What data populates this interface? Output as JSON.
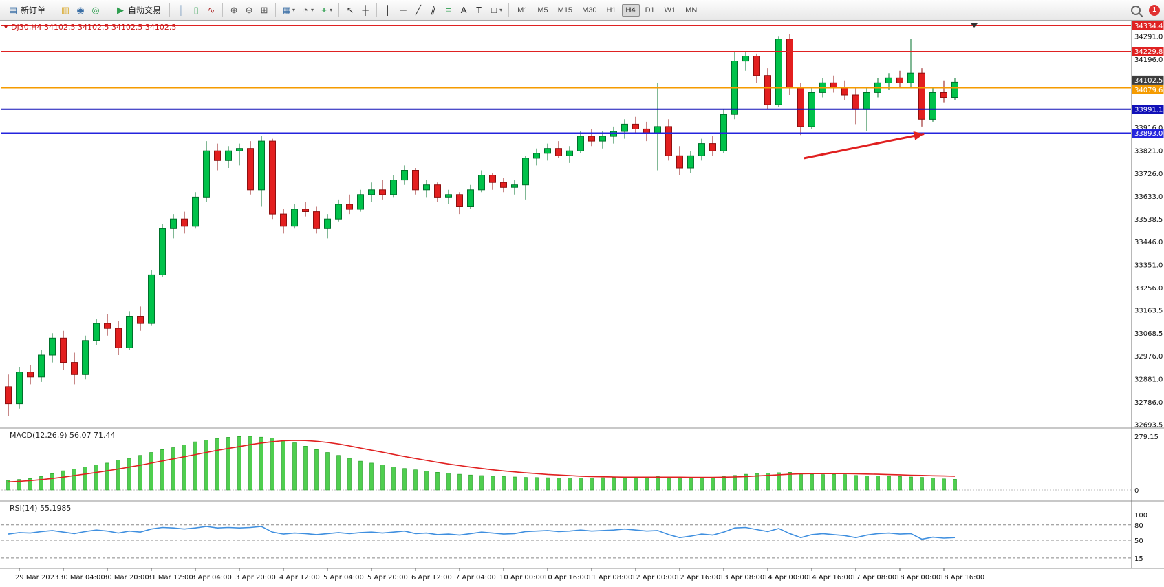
{
  "toolbar": {
    "new_order": "新订单",
    "autotrade": "自动交易",
    "timeframes": [
      "M1",
      "M5",
      "M15",
      "M30",
      "H1",
      "H4",
      "D1",
      "W1",
      "MN"
    ],
    "active_timeframe": "H4",
    "badge": "1",
    "icons": {
      "new_order": "▤",
      "charts": "▥",
      "profiles": "◉",
      "community": "◎",
      "autotrade_play": "▶",
      "bars": "║",
      "candles": "▯",
      "line_chart": "∿",
      "zoom_in": "⊕",
      "zoom_out": "⊖",
      "tile_windows": "⊞",
      "new_chart": "▦",
      "periods": "◔",
      "indicators": "+",
      "cursor": "↖",
      "crosshair": "┼",
      "vline": "│",
      "hline": "─",
      "trendline": "╱",
      "channel": "∥",
      "fibonacci": "≡",
      "text_tool": "A",
      "label_tool": "T",
      "shapes": "□",
      "caret": "▾"
    }
  },
  "chart_data": {
    "type": "candlestick",
    "symbol": "DJ30",
    "timeframe": "H4",
    "title": "DJ30,H4  34102.5 34102.5 34102.5 34102.5",
    "y_range": [
      32680,
      34350
    ],
    "candles": [
      [
        32850,
        32900,
        32730,
        32780
      ],
      [
        32780,
        32930,
        32760,
        32910
      ],
      [
        32910,
        32940,
        32860,
        32890
      ],
      [
        32890,
        33000,
        32870,
        32980
      ],
      [
        32980,
        33070,
        32950,
        33050
      ],
      [
        33050,
        33080,
        32920,
        32950
      ],
      [
        32950,
        32990,
        32860,
        32900
      ],
      [
        32900,
        33060,
        32880,
        33040
      ],
      [
        33040,
        33130,
        33020,
        33110
      ],
      [
        33110,
        33150,
        33060,
        33090
      ],
      [
        33090,
        33120,
        32980,
        33010
      ],
      [
        33010,
        33160,
        33000,
        33140
      ],
      [
        33140,
        33180,
        33080,
        33110
      ],
      [
        33110,
        33330,
        33100,
        33310
      ],
      [
        33310,
        33520,
        33300,
        33500
      ],
      [
        33500,
        33560,
        33460,
        33540
      ],
      [
        33540,
        33570,
        33480,
        33510
      ],
      [
        33510,
        33650,
        33500,
        33630
      ],
      [
        33630,
        33860,
        33610,
        33820
      ],
      [
        33820,
        33850,
        33740,
        33780
      ],
      [
        33780,
        33840,
        33750,
        33820
      ],
      [
        33820,
        33850,
        33760,
        33830
      ],
      [
        33830,
        33860,
        33640,
        33660
      ],
      [
        33660,
        33880,
        33590,
        33860
      ],
      [
        33860,
        33870,
        33540,
        33560
      ],
      [
        33560,
        33580,
        33480,
        33510
      ],
      [
        33510,
        33600,
        33500,
        33580
      ],
      [
        33580,
        33610,
        33550,
        33570
      ],
      [
        33570,
        33590,
        33480,
        33500
      ],
      [
        33500,
        33560,
        33460,
        33540
      ],
      [
        33540,
        33620,
        33530,
        33600
      ],
      [
        33600,
        33640,
        33560,
        33580
      ],
      [
        33580,
        33660,
        33570,
        33640
      ],
      [
        33640,
        33690,
        33610,
        33660
      ],
      [
        33660,
        33700,
        33620,
        33640
      ],
      [
        33640,
        33720,
        33630,
        33700
      ],
      [
        33700,
        33760,
        33680,
        33740
      ],
      [
        33740,
        33750,
        33640,
        33660
      ],
      [
        33660,
        33700,
        33630,
        33680
      ],
      [
        33680,
        33690,
        33610,
        33630
      ],
      [
        33630,
        33660,
        33600,
        33640
      ],
      [
        33640,
        33650,
        33560,
        33590
      ],
      [
        33590,
        33680,
        33580,
        33660
      ],
      [
        33660,
        33740,
        33650,
        33720
      ],
      [
        33720,
        33730,
        33660,
        33690
      ],
      [
        33690,
        33710,
        33650,
        33670
      ],
      [
        33670,
        33700,
        33640,
        33680
      ],
      [
        33680,
        33800,
        33620,
        33790
      ],
      [
        33790,
        33830,
        33760,
        33810
      ],
      [
        33810,
        33850,
        33780,
        33830
      ],
      [
        33830,
        33860,
        33790,
        33800
      ],
      [
        33800,
        33840,
        33770,
        33820
      ],
      [
        33820,
        33900,
        33810,
        33880
      ],
      [
        33880,
        33910,
        33840,
        33860
      ],
      [
        33860,
        33900,
        33830,
        33880
      ],
      [
        33880,
        33920,
        33850,
        33900
      ],
      [
        33900,
        33950,
        33870,
        33930
      ],
      [
        33930,
        33960,
        33890,
        33910
      ],
      [
        33910,
        33940,
        33860,
        33890
      ],
      [
        33890,
        34100,
        33740,
        33920
      ],
      [
        33920,
        33950,
        33780,
        33800
      ],
      [
        33800,
        33840,
        33720,
        33750
      ],
      [
        33750,
        33820,
        33730,
        33800
      ],
      [
        33800,
        33870,
        33780,
        33850
      ],
      [
        33850,
        33880,
        33800,
        33820
      ],
      [
        33820,
        33990,
        33810,
        33970
      ],
      [
        33970,
        34230,
        33950,
        34190
      ],
      [
        34190,
        34230,
        34150,
        34210
      ],
      [
        34210,
        34220,
        34100,
        34130
      ],
      [
        34130,
        34160,
        33990,
        34010
      ],
      [
        34010,
        34290,
        34000,
        34280
      ],
      [
        34280,
        34300,
        34050,
        34080
      ],
      [
        34080,
        34100,
        33885,
        33920
      ],
      [
        33920,
        34080,
        33910,
        34060
      ],
      [
        34060,
        34120,
        34040,
        34100
      ],
      [
        34100,
        34130,
        34060,
        34080
      ],
      [
        34080,
        34110,
        34030,
        34050
      ],
      [
        34050,
        34080,
        33930,
        33990
      ],
      [
        33990,
        34080,
        33900,
        34060
      ],
      [
        34060,
        34120,
        34040,
        34100
      ],
      [
        34100,
        34140,
        34070,
        34120
      ],
      [
        34120,
        34150,
        34080,
        34100
      ],
      [
        34100,
        34280,
        34080,
        34140
      ],
      [
        34140,
        34160,
        33920,
        33950
      ],
      [
        33950,
        34080,
        33940,
        34060
      ],
      [
        34060,
        34110,
        34020,
        34040
      ],
      [
        34040,
        34120,
        34030,
        34102.5
      ]
    ],
    "time_labels": [
      {
        "bar": 1,
        "text": "29 Mar 2023"
      },
      {
        "bar": 5,
        "text": "30 Mar 04:00"
      },
      {
        "bar": 9,
        "text": "30 Mar 20:00"
      },
      {
        "bar": 13,
        "text": "31 Mar 12:00"
      },
      {
        "bar": 17,
        "text": "3 Apr 04:00"
      },
      {
        "bar": 21,
        "text": "3 Apr 20:00"
      },
      {
        "bar": 25,
        "text": "4 Apr 12:00"
      },
      {
        "bar": 29,
        "text": "5 Apr 04:00"
      },
      {
        "bar": 33,
        "text": "5 Apr 20:00"
      },
      {
        "bar": 37,
        "text": "6 Apr 12:00"
      },
      {
        "bar": 41,
        "text": "7 Apr 04:00"
      },
      {
        "bar": 45,
        "text": "10 Apr 00:00"
      },
      {
        "bar": 49,
        "text": "10 Apr 16:00"
      },
      {
        "bar": 53,
        "text": "11 Apr 08:00"
      },
      {
        "bar": 57,
        "text": "12 Apr 00:00"
      },
      {
        "bar": 61,
        "text": "12 Apr 16:00"
      },
      {
        "bar": 65,
        "text": "13 Apr 08:00"
      },
      {
        "bar": 69,
        "text": "14 Apr 00:00"
      },
      {
        "bar": 73,
        "text": "14 Apr 16:00"
      },
      {
        "bar": 77,
        "text": "17 Apr 08:00"
      },
      {
        "bar": 81,
        "text": "18 Apr 00:00"
      },
      {
        "bar": 85,
        "text": "18 Apr 16:00"
      }
    ],
    "y_axis_labels": [
      34291.0,
      34196.0,
      33916.0,
      33821.0,
      33726.0,
      33633.0,
      33538.5,
      33446.0,
      33351.0,
      33256.0,
      33163.5,
      33068.5,
      32976.0,
      32881.0,
      32786.0,
      32693.5
    ],
    "price_lines": [
      {
        "label": "34334.4",
        "price": 34334.4,
        "color": "#df2222",
        "width": 1,
        "nudge": 0
      },
      {
        "label": "34229.8",
        "price": 34229.8,
        "color": "#df2222",
        "width": 1,
        "nudge": 0
      },
      {
        "label": "34079.6",
        "price": 34079.6,
        "color": "#f59b00",
        "width": 2,
        "nudge": 3
      },
      {
        "label": "33991.1",
        "price": 33991.1,
        "color": "#1111b8",
        "width": 2,
        "nudge": 0
      },
      {
        "label": "33893.0",
        "price": 33893.0,
        "color": "#2424dd",
        "width": 2,
        "nudge": 0
      }
    ],
    "current_price": {
      "label": "34102.5",
      "value": 34102.5,
      "box_color": "#3d3d3d",
      "nudge": -3
    },
    "annotations": [
      {
        "type": "arrow",
        "color": "#e02020",
        "from": {
          "bar": 72.3,
          "price": 33790
        },
        "to": {
          "bar": 83.2,
          "price": 33890
        }
      }
    ],
    "macd": {
      "name": "MACD(12,26,9)",
      "value_main": "56.07",
      "value_signal": "71.44",
      "scale_max": 279.15,
      "axis_labels": [
        "279.15",
        "0"
      ],
      "hist": [
        50,
        55,
        60,
        70,
        85,
        100,
        110,
        120,
        130,
        140,
        155,
        165,
        180,
        195,
        210,
        220,
        235,
        250,
        260,
        268,
        274,
        278,
        279,
        275,
        270,
        260,
        245,
        228,
        210,
        195,
        180,
        165,
        150,
        140,
        130,
        120,
        112,
        105,
        98,
        92,
        87,
        82,
        78,
        75,
        72,
        70,
        68,
        66,
        65,
        64,
        63,
        62,
        62,
        63,
        64,
        65,
        66,
        67,
        68,
        70,
        68,
        64,
        62,
        63,
        66,
        70,
        76,
        82,
        86,
        88,
        90,
        92,
        88,
        82,
        80,
        82,
        80,
        76,
        74,
        73,
        72,
        70,
        68,
        66,
        62,
        58,
        56
      ],
      "signal": [
        42,
        45,
        49,
        54,
        60,
        67,
        75,
        83,
        91,
        100,
        109,
        119,
        129,
        140,
        151,
        162,
        173,
        184,
        195,
        206,
        216,
        226,
        236,
        244,
        251,
        256,
        258,
        257,
        253,
        247,
        239,
        229,
        218,
        207,
        196,
        185,
        174,
        164,
        154,
        144,
        135,
        127,
        119,
        112,
        105,
        99,
        94,
        89,
        85,
        81,
        78,
        75,
        72,
        70,
        69,
        68,
        67,
        67,
        67,
        67,
        67,
        67,
        66,
        66,
        66,
        67,
        68,
        70,
        73,
        76,
        79,
        82,
        84,
        85,
        85,
        85,
        85,
        84,
        83,
        82,
        80,
        79,
        77,
        76,
        74,
        73,
        71.4
      ]
    },
    "rsi": {
      "name": "RSI(14)",
      "value": "55.1985",
      "levels": [
        80,
        50,
        15
      ],
      "axis_values": [
        100,
        80,
        50,
        15
      ],
      "values": [
        62,
        65,
        64,
        67,
        69,
        66,
        63,
        67,
        70,
        68,
        64,
        68,
        66,
        72,
        75,
        74,
        72,
        74,
        77,
        74,
        75,
        74,
        75,
        77,
        66,
        62,
        64,
        63,
        61,
        63,
        65,
        63,
        65,
        66,
        64,
        66,
        68,
        63,
        64,
        61,
        62,
        60,
        63,
        66,
        64,
        62,
        63,
        67,
        68,
        69,
        67,
        68,
        70,
        68,
        69,
        70,
        72,
        70,
        68,
        69,
        61,
        55,
        58,
        62,
        60,
        66,
        74,
        75,
        71,
        67,
        73,
        63,
        55,
        61,
        63,
        61,
        59,
        55,
        60,
        63,
        64,
        62,
        63,
        52,
        56,
        54,
        55.2
      ]
    },
    "colors": {
      "up": "#00c24a",
      "up_border": "#00712b",
      "down": "#e31f1f",
      "down_border": "#8f0f0f",
      "macd_hist": "#4fcf4f",
      "macd_hist_border": "#1d9a1d",
      "macd_signal": "#e02020",
      "rsi_line": "#3f8fdf",
      "title": "#c81616"
    }
  }
}
